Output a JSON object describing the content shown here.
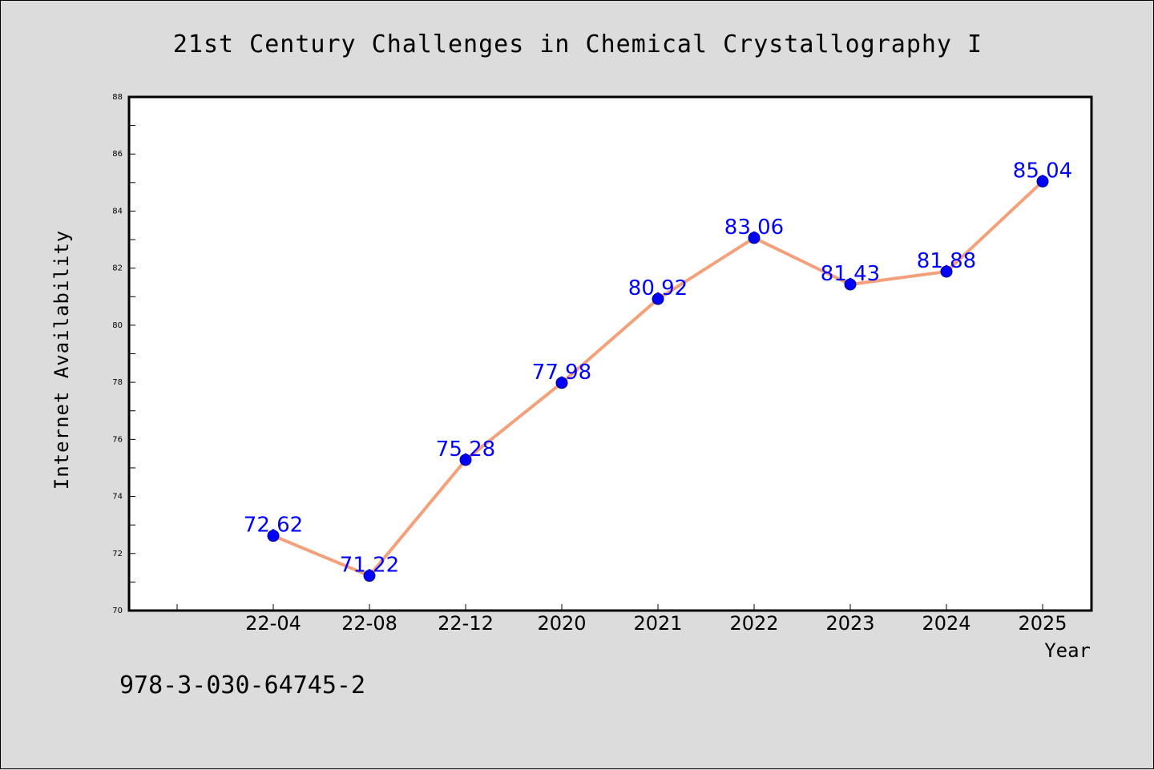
{
  "chart_data": {
    "type": "line",
    "title": "21st Century Challenges in Chemical Crystallography I",
    "xlabel": "Year",
    "ylabel": "Internet Availability",
    "categories": [
      "22-04",
      "22-08",
      "22-12",
      "2020",
      "2021",
      "2022",
      "2023",
      "2024",
      "2025"
    ],
    "series": [
      {
        "values": [
          72.62,
          71.22,
          75.28,
          77.98,
          80.92,
          83.06,
          81.43,
          81.88,
          85.04
        ],
        "labels": [
          "72.62",
          "71.22",
          "75.28",
          "77.98",
          "80.92",
          "83.06",
          "81.43",
          "81.88",
          "85.04"
        ]
      }
    ],
    "ylim": [
      70,
      88
    ],
    "yticks": [
      "70",
      "72",
      "74",
      "76",
      "78",
      "80",
      "82",
      "84",
      "86",
      "88"
    ],
    "grid": false,
    "legend": "none",
    "colors": {
      "line": "#f4a07a",
      "marker": "#0000ff",
      "marker_edge": "#000080",
      "data_label": "#0000ff",
      "background": "#dcdcdc",
      "plot_area": "#ffffff"
    }
  },
  "footer_text": "978-3-030-64745-2"
}
